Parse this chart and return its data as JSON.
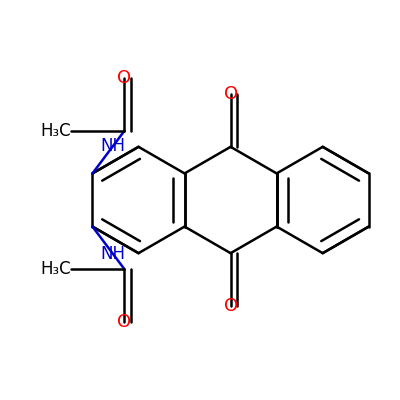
{
  "bg_color": "#ffffff",
  "bond_color": "#000000",
  "oxygen_color": "#ff0000",
  "nitrogen_color": "#0000cc",
  "bond_width": 1.8,
  "font_size": 13,
  "xlim": [
    -2.3,
    2.3
  ],
  "ylim": [
    -2.3,
    2.3
  ],
  "scale": 0.62,
  "xoffset": -0.18,
  "yoffset": 0.0
}
